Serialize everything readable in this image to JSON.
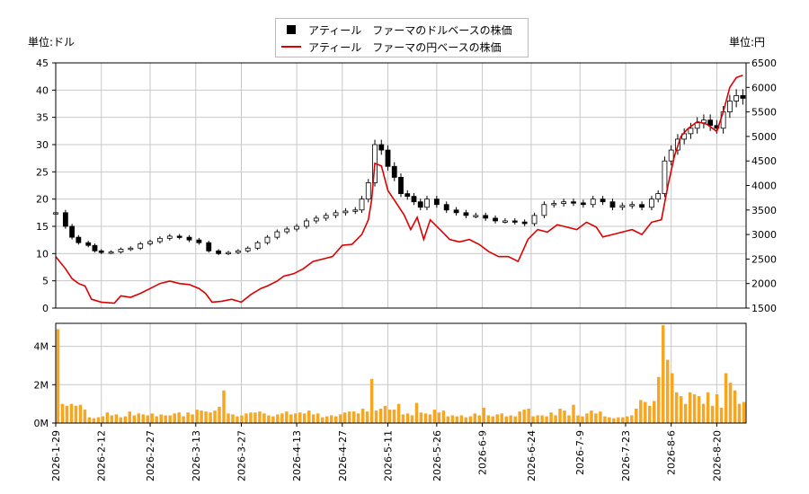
{
  "legend": {
    "usd_label": "アティール　ファーマのドルベースの株価",
    "jpy_label": "アティール　ファーマの円ベースの株価",
    "usd_color": "#000000",
    "jpy_color": "#dd0000"
  },
  "units": {
    "left": "単位:ドル",
    "right": "単位:円"
  },
  "colors": {
    "volume": "#f5a623",
    "grid": "#c8c8c8"
  },
  "chart_data": [
    {
      "type": "line",
      "title": "",
      "ylim_left": [
        0,
        45
      ],
      "ylim_right": [
        1500,
        6500
      ],
      "y_ticks_left": [
        0,
        5,
        10,
        15,
        20,
        25,
        30,
        35,
        40,
        45
      ],
      "y_ticks_right": [
        1500,
        2000,
        2500,
        3000,
        3500,
        4000,
        4500,
        5000,
        5500,
        6000,
        6500
      ],
      "grid": true,
      "legend_position": "top-center",
      "series": [
        {
          "name": "アティール　ファーマのドルベースの株価",
          "axis": "left",
          "style": "candlestick",
          "points": [
            [
              "2026-01-29",
              17.5
            ],
            [
              "2026-02-01",
              15
            ],
            [
              "2026-02-03",
              13
            ],
            [
              "2026-02-05",
              12
            ],
            [
              "2026-02-08",
              11.5
            ],
            [
              "2026-02-10",
              10.5
            ],
            [
              "2026-02-12",
              10.2
            ],
            [
              "2026-02-15",
              10.3
            ],
            [
              "2026-02-18",
              10.8
            ],
            [
              "2026-02-21",
              11
            ],
            [
              "2026-02-24",
              11.8
            ],
            [
              "2026-02-27",
              12.2
            ],
            [
              "2026-03-02",
              12.8
            ],
            [
              "2026-03-05",
              13.2
            ],
            [
              "2026-03-08",
              13
            ],
            [
              "2026-03-11",
              12.5
            ],
            [
              "2026-03-14",
              12
            ],
            [
              "2026-03-17",
              10.5
            ],
            [
              "2026-03-20",
              10
            ],
            [
              "2026-03-23",
              10.2
            ],
            [
              "2026-03-26",
              10.5
            ],
            [
              "2026-03-29",
              11
            ],
            [
              "2026-04-01",
              12
            ],
            [
              "2026-04-04",
              13
            ],
            [
              "2026-04-07",
              14
            ],
            [
              "2026-04-10",
              14.5
            ],
            [
              "2026-04-13",
              15
            ],
            [
              "2026-04-16",
              16
            ],
            [
              "2026-04-19",
              16.5
            ],
            [
              "2026-04-22",
              17
            ],
            [
              "2026-04-25",
              17.5
            ],
            [
              "2026-04-28",
              17.8
            ],
            [
              "2026-05-01",
              18
            ],
            [
              "2026-05-03",
              20
            ],
            [
              "2026-05-05",
              23
            ],
            [
              "2026-05-07",
              30
            ],
            [
              "2026-05-09",
              29
            ],
            [
              "2026-05-11",
              26
            ],
            [
              "2026-05-13",
              24
            ],
            [
              "2026-05-15",
              21
            ],
            [
              "2026-05-17",
              20.5
            ],
            [
              "2026-05-19",
              19.5
            ],
            [
              "2026-05-21",
              18.5
            ],
            [
              "2026-05-23",
              20
            ],
            [
              "2026-05-26",
              19
            ],
            [
              "2026-05-29",
              18
            ],
            [
              "2026-06-01",
              17.5
            ],
            [
              "2026-06-04",
              17
            ],
            [
              "2026-06-07",
              17
            ],
            [
              "2026-06-10",
              16.5
            ],
            [
              "2026-06-13",
              16
            ],
            [
              "2026-06-16",
              16
            ],
            [
              "2026-06-19",
              15.8
            ],
            [
              "2026-06-22",
              15.5
            ],
            [
              "2026-06-25",
              17
            ],
            [
              "2026-06-28",
              19
            ],
            [
              "2026-07-01",
              19.2
            ],
            [
              "2026-07-04",
              19.5
            ],
            [
              "2026-07-07",
              19.3
            ],
            [
              "2026-07-10",
              19
            ],
            [
              "2026-07-13",
              20
            ],
            [
              "2026-07-16",
              19.5
            ],
            [
              "2026-07-19",
              18.5
            ],
            [
              "2026-07-22",
              18.8
            ],
            [
              "2026-07-25",
              19
            ],
            [
              "2026-07-28",
              18.5
            ],
            [
              "2026-07-31",
              20
            ],
            [
              "2026-08-02",
              21
            ],
            [
              "2026-08-04",
              27
            ],
            [
              "2026-08-06",
              29
            ],
            [
              "2026-08-08",
              31
            ],
            [
              "2026-08-10",
              32
            ],
            [
              "2026-08-12",
              33
            ],
            [
              "2026-08-14",
              34
            ],
            [
              "2026-08-16",
              34.5
            ],
            [
              "2026-08-18",
              33.5
            ],
            [
              "2026-08-20",
              33
            ],
            [
              "2026-08-22",
              36
            ],
            [
              "2026-08-24",
              38
            ],
            [
              "2026-08-26",
              39
            ],
            [
              "2026-08-28",
              38.5
            ]
          ]
        },
        {
          "name": "アティール　ファーマの円ベースの株価",
          "axis": "right",
          "style": "line",
          "points": [
            [
              "2026-01-29",
              2550
            ],
            [
              "2026-02-01",
              2300
            ],
            [
              "2026-02-03",
              2100
            ],
            [
              "2026-02-05",
              2000
            ],
            [
              "2026-02-07",
              1950
            ],
            [
              "2026-02-09",
              1680
            ],
            [
              "2026-02-12",
              1620
            ],
            [
              "2026-02-16",
              1600
            ],
            [
              "2026-02-18",
              1750
            ],
            [
              "2026-02-21",
              1720
            ],
            [
              "2026-02-24",
              1800
            ],
            [
              "2026-02-27",
              1900
            ],
            [
              "2026-03-02",
              2000
            ],
            [
              "2026-03-05",
              2050
            ],
            [
              "2026-03-08",
              2000
            ],
            [
              "2026-03-11",
              1980
            ],
            [
              "2026-03-14",
              1900
            ],
            [
              "2026-03-16",
              1800
            ],
            [
              "2026-03-18",
              1620
            ],
            [
              "2026-03-21",
              1640
            ],
            [
              "2026-03-24",
              1680
            ],
            [
              "2026-03-27",
              1620
            ],
            [
              "2026-03-30",
              1780
            ],
            [
              "2026-04-02",
              1900
            ],
            [
              "2026-04-04",
              1950
            ],
            [
              "2026-04-07",
              2050
            ],
            [
              "2026-04-09",
              2150
            ],
            [
              "2026-04-12",
              2200
            ],
            [
              "2026-04-15",
              2300
            ],
            [
              "2026-04-18",
              2450
            ],
            [
              "2026-04-21",
              2500
            ],
            [
              "2026-04-24",
              2550
            ],
            [
              "2026-04-27",
              2780
            ],
            [
              "2026-04-30",
              2800
            ],
            [
              "2026-05-03",
              3000
            ],
            [
              "2026-05-05",
              3300
            ],
            [
              "2026-05-06",
              3700
            ],
            [
              "2026-05-07",
              4450
            ],
            [
              "2026-05-09",
              4400
            ],
            [
              "2026-05-11",
              3900
            ],
            [
              "2026-05-13",
              3700
            ],
            [
              "2026-05-16",
              3400
            ],
            [
              "2026-05-18",
              3100
            ],
            [
              "2026-05-20",
              3350
            ],
            [
              "2026-05-22",
              2900
            ],
            [
              "2026-05-24",
              3300
            ],
            [
              "2026-05-27",
              3100
            ],
            [
              "2026-05-30",
              2900
            ],
            [
              "2026-06-02",
              2850
            ],
            [
              "2026-06-05",
              2900
            ],
            [
              "2026-06-08",
              2800
            ],
            [
              "2026-06-11",
              2650
            ],
            [
              "2026-06-14",
              2550
            ],
            [
              "2026-06-17",
              2550
            ],
            [
              "2026-06-20",
              2450
            ],
            [
              "2026-06-23",
              2900
            ],
            [
              "2026-06-26",
              3100
            ],
            [
              "2026-06-29",
              3050
            ],
            [
              "2026-07-02",
              3200
            ],
            [
              "2026-07-05",
              3150
            ],
            [
              "2026-07-08",
              3100
            ],
            [
              "2026-07-11",
              3250
            ],
            [
              "2026-07-14",
              3150
            ],
            [
              "2026-07-16",
              2950
            ],
            [
              "2026-07-19",
              3000
            ],
            [
              "2026-07-22",
              3050
            ],
            [
              "2026-07-25",
              3100
            ],
            [
              "2026-07-28",
              3000
            ],
            [
              "2026-07-31",
              3250
            ],
            [
              "2026-08-03",
              3300
            ],
            [
              "2026-08-05",
              4000
            ],
            [
              "2026-08-07",
              4600
            ],
            [
              "2026-08-09",
              5000
            ],
            [
              "2026-08-11",
              5150
            ],
            [
              "2026-08-14",
              5300
            ],
            [
              "2026-08-17",
              5250
            ],
            [
              "2026-08-20",
              5100
            ],
            [
              "2026-08-22",
              5500
            ],
            [
              "2026-08-24",
              6000
            ],
            [
              "2026-08-26",
              6200
            ],
            [
              "2026-08-28",
              6250
            ]
          ]
        }
      ]
    },
    {
      "type": "bar",
      "title": "",
      "ylim": [
        0,
        5200000
      ],
      "y_tick_labels": [
        "0M",
        "2M",
        "4M"
      ],
      "x_tick_labels": [
        "2026-1-29",
        "2026-2-12",
        "2026-2-27",
        "2026-3-13",
        "2026-3-27",
        "2026-4-13",
        "2026-4-27",
        "2026-5-11",
        "2026-5-26",
        "2026-6-9",
        "2026-6-24",
        "2026-7-9",
        "2026-7-23",
        "2026-8-6",
        "2026-8-20"
      ],
      "x_ticks": [
        "2026-01-29",
        "2026-02-12",
        "2026-02-27",
        "2026-03-13",
        "2026-03-27",
        "2026-04-13",
        "2026-04-27",
        "2026-05-11",
        "2026-05-26",
        "2026-06-09",
        "2026-06-24",
        "2026-07-09",
        "2026-07-23",
        "2026-08-06",
        "2026-08-20"
      ],
      "x_range": [
        "2026-01-29",
        "2026-08-29"
      ],
      "series": [
        {
          "values": [
            4900000,
            1000000,
            900000,
            1000000,
            900000,
            950000,
            700000,
            300000,
            250000,
            300000,
            350000,
            550000,
            400000,
            450000,
            300000,
            350000,
            600000,
            400000,
            500000,
            450000,
            400000,
            500000,
            350000,
            450000,
            400000,
            400000,
            500000,
            550000,
            350000,
            550000,
            450000,
            700000,
            650000,
            600000,
            550000,
            650000,
            850000,
            1700000,
            500000,
            450000,
            350000,
            400000,
            500000,
            550000,
            550000,
            600000,
            500000,
            400000,
            350000,
            450000,
            500000,
            600000,
            450000,
            500000,
            550000,
            500000,
            650000,
            450000,
            500000,
            300000,
            350000,
            400000,
            350000,
            450000,
            550000,
            600000,
            600000,
            500000,
            750000,
            600000,
            2300000,
            650000,
            750000,
            900000,
            700000,
            700000,
            1000000,
            450000,
            500000,
            400000,
            1050000,
            550000,
            500000,
            450000,
            700000,
            550000,
            650000,
            350000,
            400000,
            350000,
            400000,
            300000,
            350000,
            500000,
            400000,
            800000,
            400000,
            350000,
            450000,
            500000,
            350000,
            400000,
            350000,
            600000,
            700000,
            750000,
            350000,
            400000,
            400000,
            350000,
            550000,
            400000,
            750000,
            650000,
            400000,
            950000,
            400000,
            350000,
            500000,
            650000,
            500000,
            600000,
            350000,
            300000,
            250000,
            300000,
            300000,
            350000,
            400000,
            750000,
            1200000,
            1100000,
            900000,
            1150000,
            2400000,
            5100000,
            3300000,
            2600000,
            1600000,
            1400000,
            1000000,
            1600000,
            1500000,
            1400000,
            1000000,
            1600000,
            900000,
            1500000,
            800000,
            2600000,
            2100000,
            1700000,
            1000000,
            1100000
          ]
        }
      ]
    }
  ]
}
